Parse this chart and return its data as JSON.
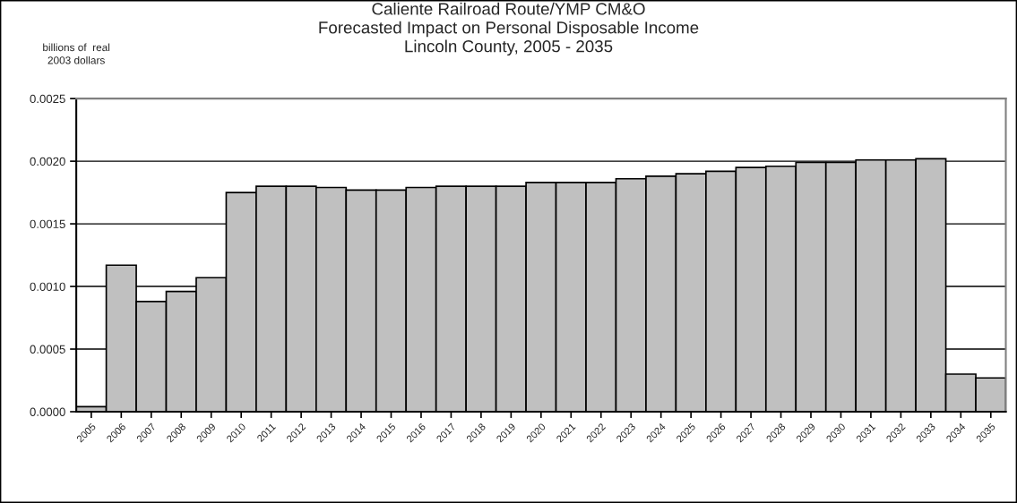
{
  "chart_data": {
    "type": "bar",
    "title": "Caliente Railroad Route/YMP CM&O\nForecasted Impact on Personal Disposable Income\nLincoln County, 2005 - 2035",
    "ylabel": "billions of  real\n2003 dollars",
    "categories": [
      "2005",
      "2006",
      "2007",
      "2008",
      "2009",
      "2010",
      "2011",
      "2012",
      "2013",
      "2014",
      "2015",
      "2016",
      "2017",
      "2018",
      "2019",
      "2020",
      "2021",
      "2022",
      "2023",
      "2024",
      "2025",
      "2026",
      "2027",
      "2028",
      "2029",
      "2030",
      "2031",
      "2032",
      "2033",
      "2034",
      "2035"
    ],
    "values": [
      4e-05,
      0.00117,
      0.00088,
      0.00096,
      0.00107,
      0.00175,
      0.0018,
      0.0018,
      0.00179,
      0.00177,
      0.00177,
      0.00179,
      0.0018,
      0.0018,
      0.0018,
      0.00183,
      0.00183,
      0.00183,
      0.00186,
      0.00188,
      0.0019,
      0.00192,
      0.00195,
      0.00196,
      0.00199,
      0.00199,
      0.00201,
      0.00201,
      0.00202,
      0.0003,
      0.00027
    ],
    "color": "#c0c0c0",
    "ylim": [
      0,
      0.0025
    ],
    "yticks": [
      {
        "value": 0,
        "label": "0.0000"
      },
      {
        "value": 0.0005,
        "label": "0.0005"
      },
      {
        "value": 0.001,
        "label": "0.0010"
      },
      {
        "value": 0.0015,
        "label": "0.0015"
      },
      {
        "value": 0.002,
        "label": "0.0020"
      },
      {
        "value": 0.0025,
        "label": "0.0025"
      }
    ],
    "grid": "y",
    "legend": false
  }
}
